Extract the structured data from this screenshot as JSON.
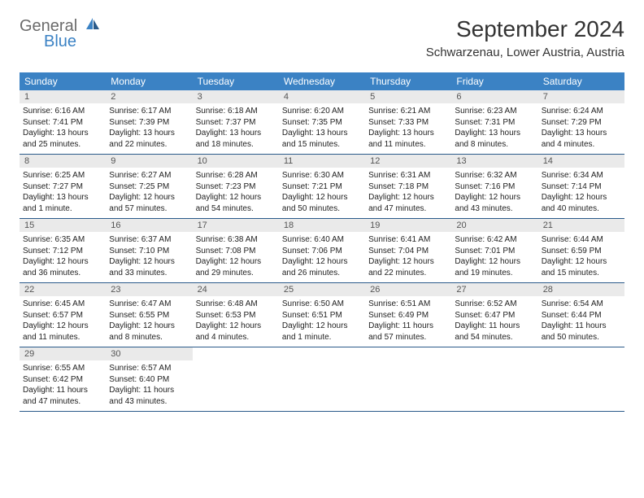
{
  "logo": {
    "general": "General",
    "blue": "Blue"
  },
  "header": {
    "title": "September 2024",
    "location": "Schwarzenau, Lower Austria, Austria"
  },
  "colors": {
    "header_bg": "#3b82c4",
    "header_text": "#ffffff",
    "daynum_bg": "#eaeaea",
    "week_border": "#2a5a8a",
    "logo_gray": "#6b6b6b",
    "logo_blue": "#3b82c4"
  },
  "day_labels": [
    "Sunday",
    "Monday",
    "Tuesday",
    "Wednesday",
    "Thursday",
    "Friday",
    "Saturday"
  ],
  "days": [
    {
      "n": "1",
      "sr": "Sunrise: 6:16 AM",
      "ss": "Sunset: 7:41 PM",
      "dl": "Daylight: 13 hours and 25 minutes."
    },
    {
      "n": "2",
      "sr": "Sunrise: 6:17 AM",
      "ss": "Sunset: 7:39 PM",
      "dl": "Daylight: 13 hours and 22 minutes."
    },
    {
      "n": "3",
      "sr": "Sunrise: 6:18 AM",
      "ss": "Sunset: 7:37 PM",
      "dl": "Daylight: 13 hours and 18 minutes."
    },
    {
      "n": "4",
      "sr": "Sunrise: 6:20 AM",
      "ss": "Sunset: 7:35 PM",
      "dl": "Daylight: 13 hours and 15 minutes."
    },
    {
      "n": "5",
      "sr": "Sunrise: 6:21 AM",
      "ss": "Sunset: 7:33 PM",
      "dl": "Daylight: 13 hours and 11 minutes."
    },
    {
      "n": "6",
      "sr": "Sunrise: 6:23 AM",
      "ss": "Sunset: 7:31 PM",
      "dl": "Daylight: 13 hours and 8 minutes."
    },
    {
      "n": "7",
      "sr": "Sunrise: 6:24 AM",
      "ss": "Sunset: 7:29 PM",
      "dl": "Daylight: 13 hours and 4 minutes."
    },
    {
      "n": "8",
      "sr": "Sunrise: 6:25 AM",
      "ss": "Sunset: 7:27 PM",
      "dl": "Daylight: 13 hours and 1 minute."
    },
    {
      "n": "9",
      "sr": "Sunrise: 6:27 AM",
      "ss": "Sunset: 7:25 PM",
      "dl": "Daylight: 12 hours and 57 minutes."
    },
    {
      "n": "10",
      "sr": "Sunrise: 6:28 AM",
      "ss": "Sunset: 7:23 PM",
      "dl": "Daylight: 12 hours and 54 minutes."
    },
    {
      "n": "11",
      "sr": "Sunrise: 6:30 AM",
      "ss": "Sunset: 7:21 PM",
      "dl": "Daylight: 12 hours and 50 minutes."
    },
    {
      "n": "12",
      "sr": "Sunrise: 6:31 AM",
      "ss": "Sunset: 7:18 PM",
      "dl": "Daylight: 12 hours and 47 minutes."
    },
    {
      "n": "13",
      "sr": "Sunrise: 6:32 AM",
      "ss": "Sunset: 7:16 PM",
      "dl": "Daylight: 12 hours and 43 minutes."
    },
    {
      "n": "14",
      "sr": "Sunrise: 6:34 AM",
      "ss": "Sunset: 7:14 PM",
      "dl": "Daylight: 12 hours and 40 minutes."
    },
    {
      "n": "15",
      "sr": "Sunrise: 6:35 AM",
      "ss": "Sunset: 7:12 PM",
      "dl": "Daylight: 12 hours and 36 minutes."
    },
    {
      "n": "16",
      "sr": "Sunrise: 6:37 AM",
      "ss": "Sunset: 7:10 PM",
      "dl": "Daylight: 12 hours and 33 minutes."
    },
    {
      "n": "17",
      "sr": "Sunrise: 6:38 AM",
      "ss": "Sunset: 7:08 PM",
      "dl": "Daylight: 12 hours and 29 minutes."
    },
    {
      "n": "18",
      "sr": "Sunrise: 6:40 AM",
      "ss": "Sunset: 7:06 PM",
      "dl": "Daylight: 12 hours and 26 minutes."
    },
    {
      "n": "19",
      "sr": "Sunrise: 6:41 AM",
      "ss": "Sunset: 7:04 PM",
      "dl": "Daylight: 12 hours and 22 minutes."
    },
    {
      "n": "20",
      "sr": "Sunrise: 6:42 AM",
      "ss": "Sunset: 7:01 PM",
      "dl": "Daylight: 12 hours and 19 minutes."
    },
    {
      "n": "21",
      "sr": "Sunrise: 6:44 AM",
      "ss": "Sunset: 6:59 PM",
      "dl": "Daylight: 12 hours and 15 minutes."
    },
    {
      "n": "22",
      "sr": "Sunrise: 6:45 AM",
      "ss": "Sunset: 6:57 PM",
      "dl": "Daylight: 12 hours and 11 minutes."
    },
    {
      "n": "23",
      "sr": "Sunrise: 6:47 AM",
      "ss": "Sunset: 6:55 PM",
      "dl": "Daylight: 12 hours and 8 minutes."
    },
    {
      "n": "24",
      "sr": "Sunrise: 6:48 AM",
      "ss": "Sunset: 6:53 PM",
      "dl": "Daylight: 12 hours and 4 minutes."
    },
    {
      "n": "25",
      "sr": "Sunrise: 6:50 AM",
      "ss": "Sunset: 6:51 PM",
      "dl": "Daylight: 12 hours and 1 minute."
    },
    {
      "n": "26",
      "sr": "Sunrise: 6:51 AM",
      "ss": "Sunset: 6:49 PM",
      "dl": "Daylight: 11 hours and 57 minutes."
    },
    {
      "n": "27",
      "sr": "Sunrise: 6:52 AM",
      "ss": "Sunset: 6:47 PM",
      "dl": "Daylight: 11 hours and 54 minutes."
    },
    {
      "n": "28",
      "sr": "Sunrise: 6:54 AM",
      "ss": "Sunset: 6:44 PM",
      "dl": "Daylight: 11 hours and 50 minutes."
    },
    {
      "n": "29",
      "sr": "Sunrise: 6:55 AM",
      "ss": "Sunset: 6:42 PM",
      "dl": "Daylight: 11 hours and 47 minutes."
    },
    {
      "n": "30",
      "sr": "Sunrise: 6:57 AM",
      "ss": "Sunset: 6:40 PM",
      "dl": "Daylight: 11 hours and 43 minutes."
    }
  ]
}
